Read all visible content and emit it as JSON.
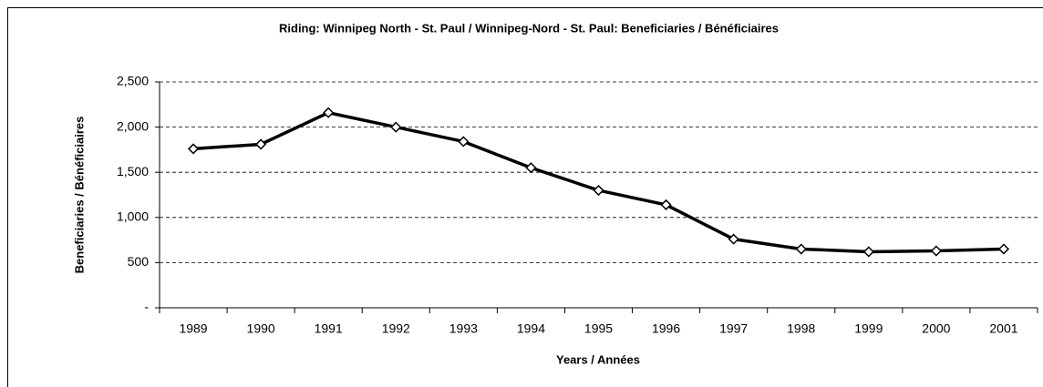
{
  "chart_data": {
    "type": "line",
    "title": "Riding:  Winnipeg North - St. Paul / Winnipeg-Nord - St. Paul:  Beneficiaries / Bénéficiaires",
    "x_label": "Years / Années",
    "y_label": "Beneficiaries / Bénéficiaires",
    "categories": [
      "1989",
      "1990",
      "1991",
      "1992",
      "1993",
      "1994",
      "1995",
      "1996",
      "1997",
      "1998",
      "1999",
      "2000",
      "2001"
    ],
    "series": [
      {
        "name": "Beneficiaries / Bénéficiaires",
        "color": "#000000",
        "values": [
          1760,
          1810,
          2160,
          2000,
          1840,
          1550,
          1300,
          1140,
          760,
          650,
          620,
          630,
          650
        ]
      }
    ],
    "ylim": [
      0,
      2500
    ],
    "yticks": [
      {
        "value": 0,
        "label": "-"
      },
      500,
      {
        "value": 1000,
        "label": "1,000"
      },
      {
        "value": 1500,
        "label": "1,500"
      },
      {
        "value": 2000,
        "label": "2,000"
      },
      {
        "value": 2500,
        "label": "2,500"
      }
    ],
    "grid": true
  }
}
